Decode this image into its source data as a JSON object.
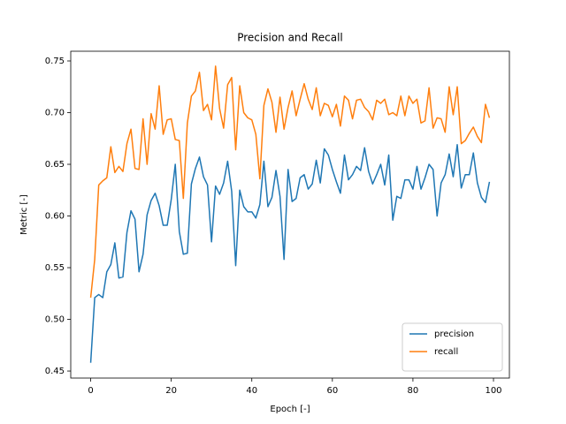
{
  "chart_data": {
    "type": "line",
    "title": "Precision and Recall",
    "xlabel": "Epoch [-]",
    "ylabel": "Metric [-]",
    "x": [
      0,
      1,
      2,
      3,
      4,
      5,
      6,
      7,
      8,
      9,
      10,
      11,
      12,
      13,
      14,
      15,
      16,
      17,
      18,
      19,
      20,
      21,
      22,
      23,
      24,
      25,
      26,
      27,
      28,
      29,
      30,
      31,
      32,
      33,
      34,
      35,
      36,
      37,
      38,
      39,
      40,
      41,
      42,
      43,
      44,
      45,
      46,
      47,
      48,
      49,
      50,
      51,
      52,
      53,
      54,
      55,
      56,
      57,
      58,
      59,
      60,
      61,
      62,
      63,
      64,
      65,
      66,
      67,
      68,
      69,
      70,
      71,
      72,
      73,
      74,
      75,
      76,
      77,
      78,
      79,
      80,
      81,
      82,
      83,
      84,
      85,
      86,
      87,
      88,
      89,
      90,
      91,
      92,
      93,
      94,
      95,
      96,
      97,
      98,
      99
    ],
    "series": [
      {
        "name": "precision",
        "color": "#1f77b4",
        "values": [
          0.458,
          0.521,
          0.524,
          0.521,
          0.546,
          0.553,
          0.574,
          0.54,
          0.541,
          0.584,
          0.605,
          0.597,
          0.546,
          0.563,
          0.601,
          0.615,
          0.622,
          0.61,
          0.591,
          0.591,
          0.616,
          0.65,
          0.585,
          0.563,
          0.564,
          0.631,
          0.646,
          0.657,
          0.638,
          0.63,
          0.575,
          0.629,
          0.621,
          0.632,
          0.653,
          0.624,
          0.552,
          0.625,
          0.609,
          0.604,
          0.604,
          0.598,
          0.611,
          0.653,
          0.609,
          0.618,
          0.644,
          0.619,
          0.558,
          0.645,
          0.614,
          0.617,
          0.637,
          0.64,
          0.626,
          0.631,
          0.654,
          0.632,
          0.665,
          0.659,
          0.645,
          0.633,
          0.622,
          0.659,
          0.635,
          0.64,
          0.648,
          0.644,
          0.666,
          0.643,
          0.631,
          0.64,
          0.65,
          0.63,
          0.659,
          0.596,
          0.619,
          0.617,
          0.635,
          0.635,
          0.626,
          0.648,
          0.626,
          0.637,
          0.65,
          0.645,
          0.6,
          0.632,
          0.64,
          0.66,
          0.638,
          0.669,
          0.627,
          0.64,
          0.64,
          0.661,
          0.632,
          0.618,
          0.613,
          0.633
        ]
      },
      {
        "name": "recall",
        "color": "#ff7f0e",
        "values": [
          0.521,
          0.558,
          0.63,
          0.634,
          0.637,
          0.667,
          0.642,
          0.648,
          0.643,
          0.67,
          0.684,
          0.646,
          0.645,
          0.694,
          0.65,
          0.699,
          0.684,
          0.726,
          0.679,
          0.693,
          0.694,
          0.674,
          0.673,
          0.617,
          0.69,
          0.716,
          0.721,
          0.739,
          0.702,
          0.708,
          0.693,
          0.745,
          0.704,
          0.685,
          0.727,
          0.734,
          0.664,
          0.726,
          0.7,
          0.695,
          0.693,
          0.679,
          0.636,
          0.707,
          0.723,
          0.71,
          0.681,
          0.715,
          0.684,
          0.705,
          0.721,
          0.697,
          0.713,
          0.728,
          0.713,
          0.703,
          0.724,
          0.697,
          0.709,
          0.707,
          0.696,
          0.708,
          0.687,
          0.716,
          0.712,
          0.694,
          0.712,
          0.713,
          0.705,
          0.701,
          0.693,
          0.712,
          0.709,
          0.713,
          0.698,
          0.7,
          0.697,
          0.716,
          0.697,
          0.716,
          0.709,
          0.713,
          0.69,
          0.692,
          0.724,
          0.685,
          0.695,
          0.694,
          0.681,
          0.725,
          0.698,
          0.725,
          0.67,
          0.673,
          0.68,
          0.686,
          0.677,
          0.671,
          0.708,
          0.695
        ]
      }
    ],
    "xlim": [
      -4.95,
      103.95
    ],
    "xticks": [
      0,
      20,
      40,
      60,
      80,
      100
    ],
    "ylim": [
      0.4432,
      0.7594
    ],
    "yticks": [
      0.45,
      {
        "value": 0.5,
        "label": "0.50"
      },
      0.55,
      {
        "value": 0.6,
        "label": "0.60"
      },
      0.65,
      {
        "value": 0.7,
        "label": "0.70"
      },
      0.75
    ],
    "legend": "lower right",
    "grid": false
  }
}
